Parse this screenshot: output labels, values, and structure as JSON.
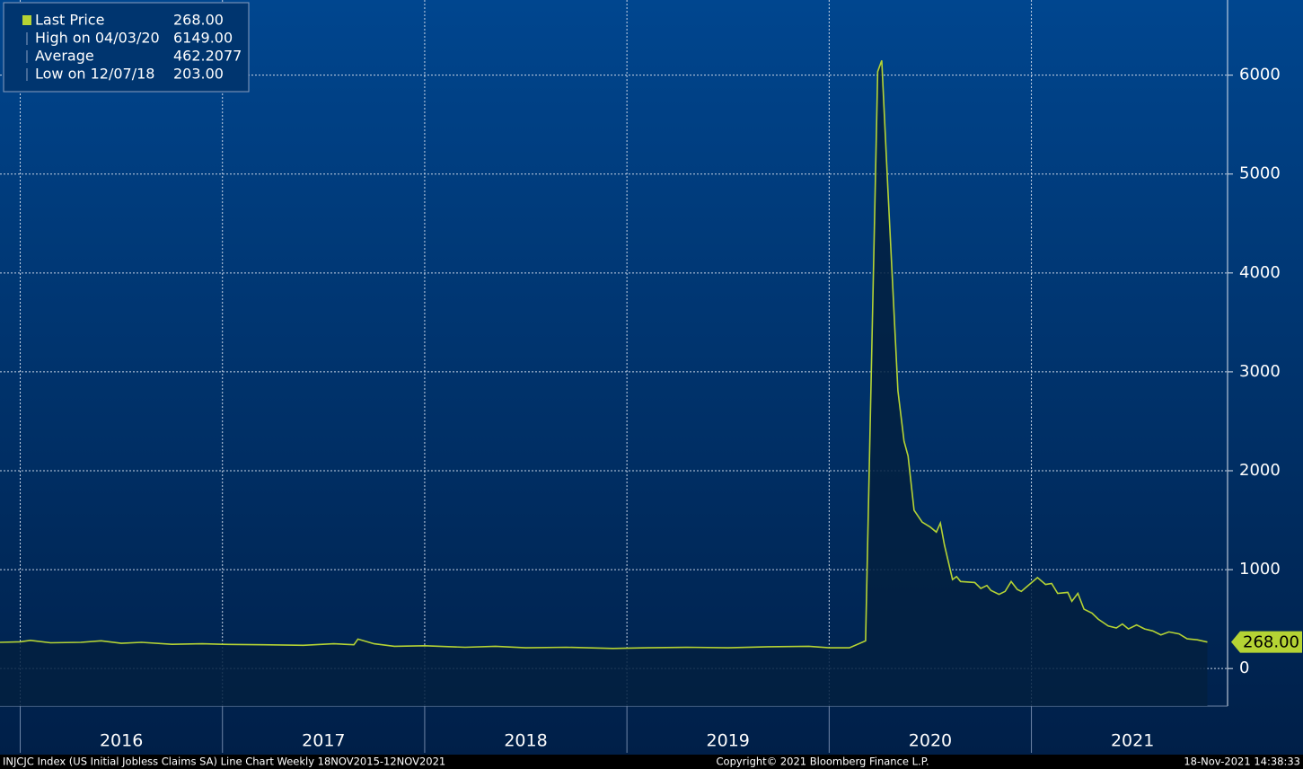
{
  "chart_data": {
    "type": "area",
    "line_color": "#b5d334",
    "x": [
      2015.9,
      2016.0,
      2016.05,
      2016.15,
      2016.3,
      2016.4,
      2016.5,
      2016.6,
      2016.75,
      2016.9,
      2017.0,
      2017.2,
      2017.4,
      2017.55,
      2017.65,
      2017.67,
      2017.75,
      2017.85,
      2018.0,
      2018.2,
      2018.35,
      2018.5,
      2018.7,
      2018.93,
      2019.1,
      2019.3,
      2019.5,
      2019.7,
      2019.9,
      2020.0,
      2020.1,
      2020.18,
      2020.24,
      2020.26,
      2020.29,
      2020.34,
      2020.37,
      2020.39,
      2020.42,
      2020.46,
      2020.5,
      2020.53,
      2020.55,
      2020.57,
      2020.61,
      2020.63,
      2020.65,
      2020.72,
      2020.75,
      2020.78,
      2020.8,
      2020.84,
      2020.87,
      2020.9,
      2020.93,
      2020.95,
      2021.03,
      2021.07,
      2021.1,
      2021.13,
      2021.18,
      2021.2,
      2021.23,
      2021.26,
      2021.3,
      2021.33,
      2021.38,
      2021.42,
      2021.45,
      2021.48,
      2021.52,
      2021.56,
      2021.6,
      2021.64,
      2021.68,
      2021.73,
      2021.77,
      2021.82,
      2021.87
    ],
    "values": [
      265,
      270,
      285,
      260,
      265,
      280,
      255,
      265,
      245,
      250,
      245,
      240,
      235,
      250,
      240,
      298,
      250,
      225,
      230,
      215,
      225,
      210,
      215,
      203,
      210,
      215,
      210,
      220,
      225,
      210,
      210,
      280,
      6036,
      6149,
      4855,
      2809,
      2300,
      2150,
      1600,
      1480,
      1430,
      1380,
      1470,
      1250,
      900,
      930,
      880,
      870,
      810,
      840,
      790,
      750,
      780,
      880,
      800,
      780,
      920,
      850,
      860,
      760,
      770,
      680,
      760,
      600,
      560,
      500,
      430,
      410,
      450,
      400,
      440,
      400,
      380,
      340,
      370,
      350,
      300,
      290,
      268
    ],
    "xlim": [
      2015.9,
      2021.97
    ],
    "xticks": [
      2016,
      2017,
      2018,
      2019,
      2020,
      2021
    ],
    "ylim": [
      -380,
      6760
    ],
    "yticks": [
      0,
      1000,
      2000,
      3000,
      4000,
      5000,
      6000
    ],
    "grid": true,
    "legend": [
      {
        "label": "Last Price",
        "value": "268.00"
      },
      {
        "label": "High on 04/03/20",
        "value": "6149.00"
      },
      {
        "label": "Average",
        "value": "462.2077"
      },
      {
        "label": "Low on 12/07/18",
        "value": "203.00"
      }
    ],
    "footer": [
      "INJCJC Index (US Initial Jobless Claims SA) Line Chart  Weekly 18NOV2015-12NOV2021",
      "Copyright© 2021 Bloomberg Finance L.P.",
      "18-Nov-2021 14:38:33"
    ]
  }
}
